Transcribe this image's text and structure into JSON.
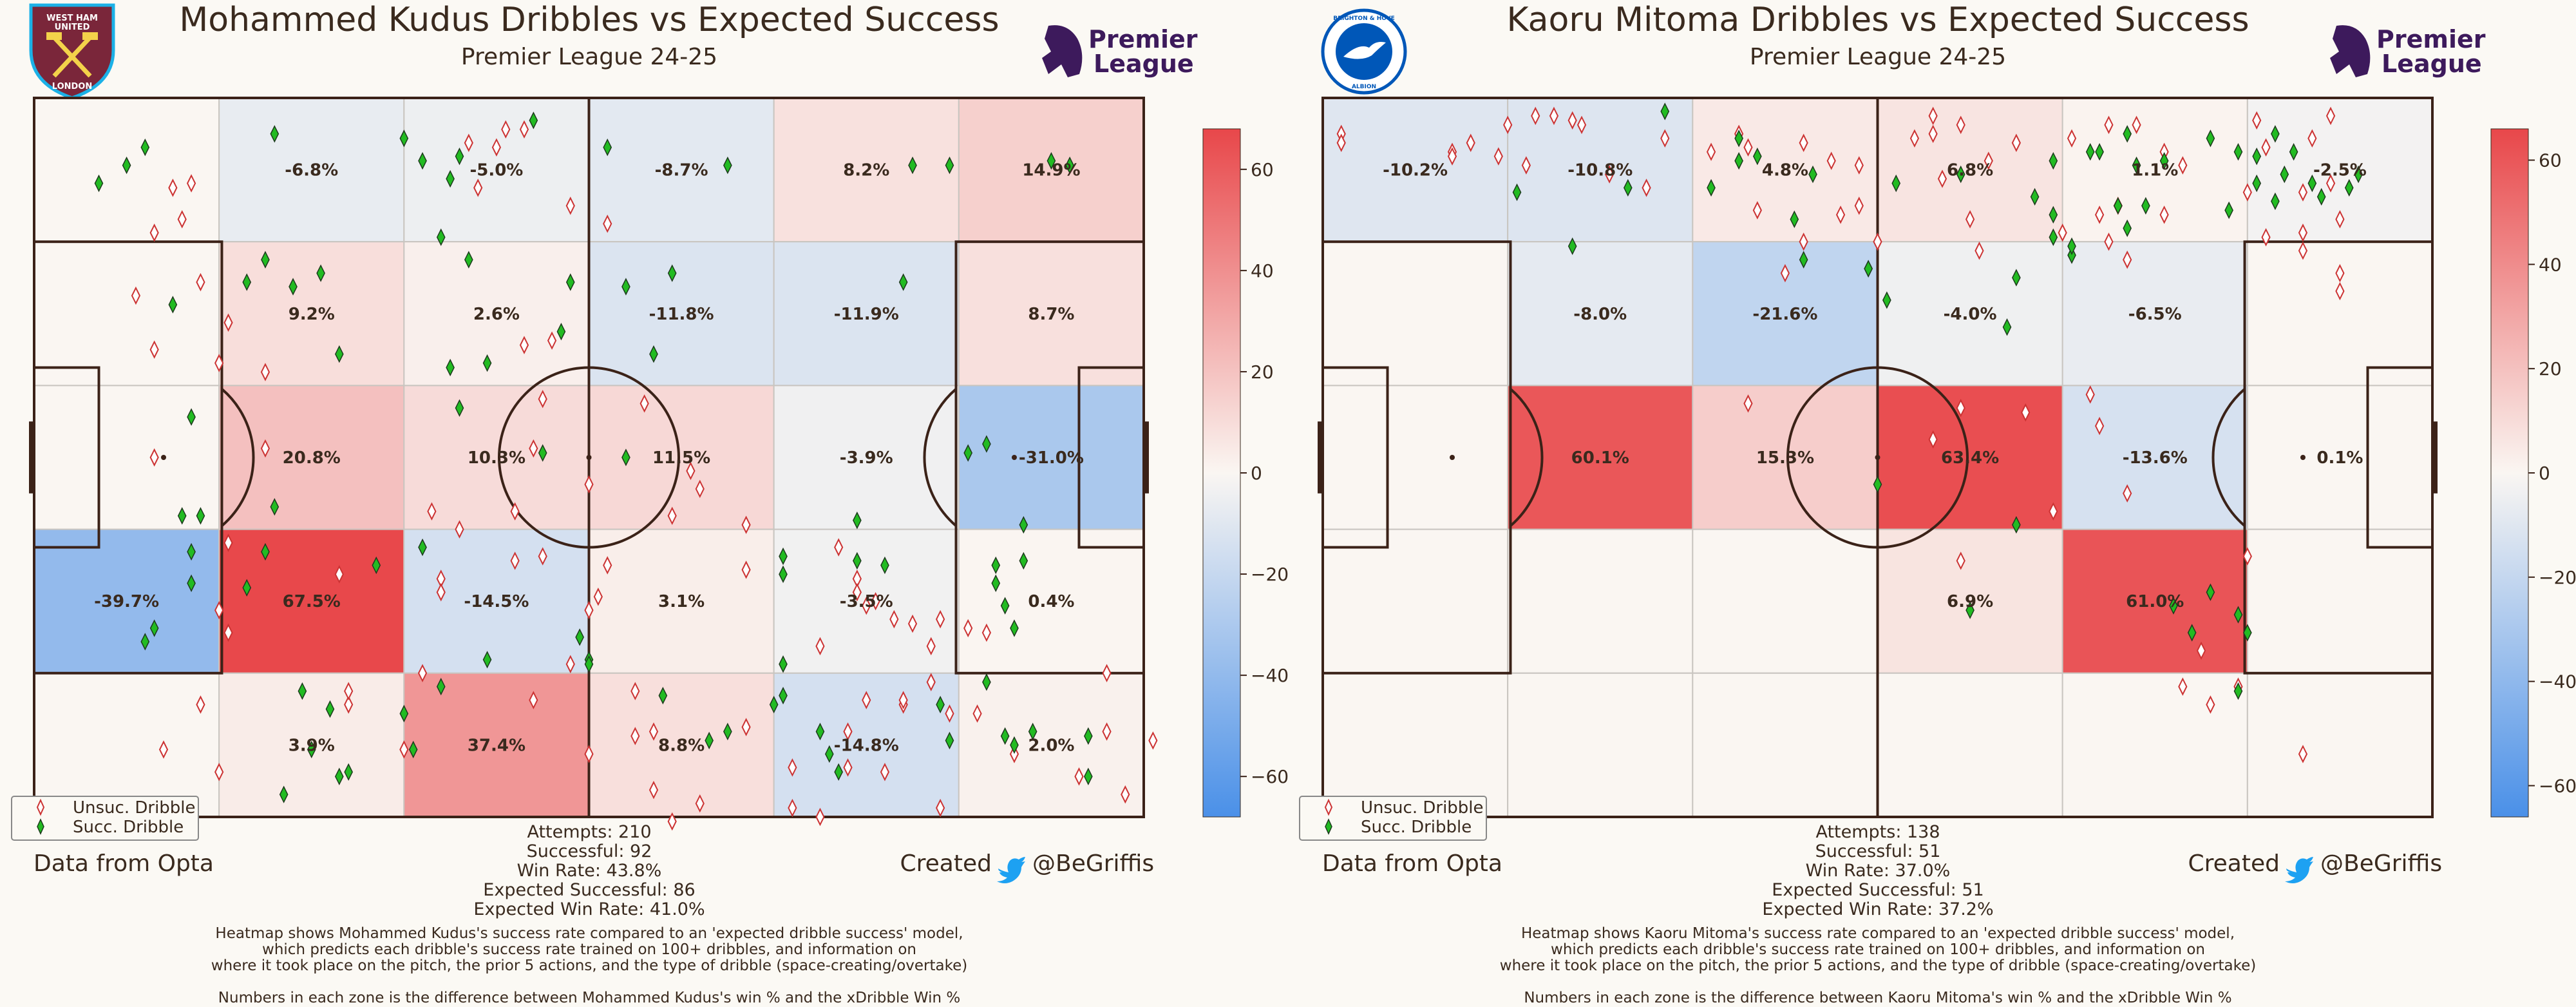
{
  "colors": {
    "background": "#fbf9f4",
    "pitch_line": "#3b2218",
    "grid_line": "#c9c5c0",
    "unsuccessful": "#cc3333",
    "successful": "#22bb22",
    "scale_positive": "#e8474a",
    "scale_neutral": "#faf6f2",
    "scale_negative": "#4a90e8",
    "premier_league": "#3d1a5c",
    "twitter": "#1da1f2"
  },
  "credits": {
    "data_source": "Data from Opta",
    "created_label": "Created",
    "handle": "@BeGriffis"
  },
  "legend": {
    "unsuccessful": "Unsuc. Dribble",
    "successful": "Succ. Dribble"
  },
  "premier_league_logo": {
    "line1": "Premier",
    "line2": "League"
  },
  "chart_data": [
    {
      "type": "heatmap",
      "title": "Mohammed Kudus Dribbles vs Expected Success",
      "subtitle": "Premier League 24-25",
      "club_logo": {
        "name": "west-ham-crest",
        "line1": "WEST HAM",
        "line2": "UNITED",
        "line3": "LONDON"
      },
      "grid": {
        "columns": 6,
        "rows": 5
      },
      "zone_values": [
        [
          null,
          -6.8,
          -5.0,
          -8.7,
          8.2,
          14.9
        ],
        [
          null,
          9.2,
          2.6,
          -11.8,
          -11.9,
          8.7
        ],
        [
          null,
          20.8,
          10.3,
          11.5,
          -3.9,
          -31.0
        ],
        [
          -39.7,
          67.5,
          -14.5,
          3.1,
          -3.5,
          0.4
        ],
        [
          null,
          3.9,
          37.4,
          8.8,
          -14.8,
          2.0
        ]
      ],
      "colorbar": {
        "min": -68,
        "max": 68,
        "ticks": [
          60,
          40,
          20,
          0,
          -20,
          -40,
          -60
        ]
      },
      "stats": [
        "Attempts: 210",
        "Successful: 92",
        "Win Rate: 43.8%",
        "Expected Successful: 86",
        "Expected Win Rate: 41.0%"
      ],
      "notes": [
        "Heatmap shows Mohammed Kudus's success rate compared to an 'expected dribble success' model,",
        "which predicts each dribble's success rate trained on 100+ dribbles, and information on",
        "where it took place on the pitch, the prior 5 actions, and the type of dribble (space-creating/overtake)",
        "",
        "Numbers in each zone is the difference between Mohammed Kudus's win % and the xDribble Win %"
      ],
      "dribbles_unsuccessful": [
        [
          15,
          20
        ],
        [
          13,
          30
        ],
        [
          16,
          27
        ],
        [
          17,
          19
        ],
        [
          11,
          44
        ],
        [
          18,
          41
        ],
        [
          13,
          56
        ],
        [
          20,
          59
        ],
        [
          21,
          50
        ],
        [
          13,
          80
        ],
        [
          25,
          61
        ],
        [
          25,
          78
        ],
        [
          21,
          99
        ],
        [
          21,
          119
        ],
        [
          33,
          106
        ],
        [
          20,
          114
        ],
        [
          43,
          92
        ],
        [
          46,
          96
        ],
        [
          44,
          107
        ],
        [
          44,
          110
        ],
        [
          52,
          92
        ],
        [
          52,
          103
        ],
        [
          69,
          93
        ],
        [
          77,
          95
        ],
        [
          62,
          104
        ],
        [
          61,
          111
        ],
        [
          65,
          132
        ],
        [
          42,
          128
        ],
        [
          20,
          150
        ],
        [
          14,
          145
        ],
        [
          18,
          135
        ],
        [
          40,
          145
        ],
        [
          65,
          142
        ],
        [
          60,
          146
        ],
        [
          67,
          141
        ],
        [
          72,
          157
        ],
        [
          67,
          154
        ],
        [
          69,
          161
        ],
        [
          82,
          158
        ],
        [
          85,
          160
        ],
        [
          88,
          149
        ],
        [
          77,
          140
        ],
        [
          82,
          149
        ],
        [
          98,
          158
        ],
        [
          94,
          135
        ],
        [
          94,
          134
        ],
        [
          97,
          122
        ],
        [
          90,
          113
        ],
        [
          95,
          117
        ],
        [
          89,
          107
        ],
        [
          93,
          116
        ],
        [
          98,
          116
        ],
        [
          91,
          112
        ],
        [
          89,
          110
        ],
        [
          85,
          122
        ],
        [
          90,
          134
        ],
        [
          58,
          24
        ],
        [
          62,
          28
        ],
        [
          53,
          55
        ],
        [
          56,
          54
        ],
        [
          54,
          78
        ],
        [
          60,
          86
        ],
        [
          66,
          68
        ],
        [
          55,
          67
        ],
        [
          55,
          102
        ],
        [
          54,
          134
        ],
        [
          48,
          20
        ],
        [
          47,
          10
        ],
        [
          53,
          7
        ],
        [
          51,
          7
        ],
        [
          50,
          11
        ],
        [
          87,
          100
        ],
        [
          92,
          150
        ],
        [
          88,
          141
        ],
        [
          77,
          105
        ],
        [
          71,
          83
        ],
        [
          72,
          87
        ],
        [
          60,
          114
        ],
        [
          58,
          126
        ],
        [
          34,
          135
        ],
        [
          34,
          132
        ],
        [
          99,
          137
        ],
        [
          97,
          130
        ],
        [
          103,
          119
        ],
        [
          101,
          118
        ],
        [
          116,
          141
        ],
        [
          113,
          151
        ],
        [
          121,
          143
        ],
        [
          118,
          155
        ],
        [
          116,
          128
        ],
        [
          102,
          137
        ],
        [
          106,
          146
        ]
      ],
      "dribbles_successful": [
        [
          7,
          19
        ],
        [
          10,
          15
        ],
        [
          15,
          46
        ],
        [
          12,
          11
        ],
        [
          23,
          41
        ],
        [
          25,
          36
        ],
        [
          26,
          8
        ],
        [
          33,
          57
        ],
        [
          28,
          42
        ],
        [
          31,
          39
        ],
        [
          45,
          18
        ],
        [
          47,
          36
        ],
        [
          42,
          100
        ],
        [
          44,
          131
        ],
        [
          49,
          125
        ],
        [
          34,
          150
        ],
        [
          30,
          145
        ],
        [
          40,
          137
        ],
        [
          27,
          155
        ],
        [
          29,
          132
        ],
        [
          32,
          136
        ],
        [
          33,
          151
        ],
        [
          41,
          145
        ],
        [
          59,
          120
        ],
        [
          60,
          125
        ],
        [
          60,
          126
        ],
        [
          68,
          133
        ],
        [
          73,
          143
        ],
        [
          75,
          141
        ],
        [
          80,
          135
        ],
        [
          81,
          133
        ],
        [
          81,
          126
        ],
        [
          85,
          141
        ],
        [
          81,
          106
        ],
        [
          81,
          102
        ],
        [
          89,
          94
        ],
        [
          92,
          104
        ],
        [
          89,
          103
        ],
        [
          98,
          135
        ],
        [
          103,
          130
        ],
        [
          106,
          144
        ],
        [
          105,
          142
        ],
        [
          108,
          141
        ],
        [
          114,
          151
        ],
        [
          114,
          142
        ],
        [
          104,
          104
        ],
        [
          87,
          150
        ],
        [
          86,
          146
        ],
        [
          99,
          143
        ],
        [
          62,
          11
        ],
        [
          64,
          80
        ],
        [
          64,
          42
        ],
        [
          58,
          41
        ],
        [
          57,
          52
        ],
        [
          67,
          57
        ],
        [
          55,
          79
        ],
        [
          40,
          9
        ],
        [
          42,
          14
        ],
        [
          46,
          69
        ],
        [
          45,
          60
        ],
        [
          44,
          31
        ],
        [
          49,
          59
        ],
        [
          54,
          5
        ],
        [
          46,
          13
        ],
        [
          37,
          104
        ],
        [
          25,
          101
        ],
        [
          26,
          91
        ],
        [
          17,
          71
        ],
        [
          16,
          93
        ],
        [
          17,
          108
        ],
        [
          23,
          109
        ],
        [
          18,
          93
        ],
        [
          17,
          101
        ],
        [
          12,
          121
        ],
        [
          13,
          118
        ],
        [
          94,
          41
        ],
        [
          103,
          77
        ],
        [
          101,
          79
        ],
        [
          107,
          95
        ],
        [
          104,
          108
        ],
        [
          105,
          113
        ],
        [
          106,
          118
        ],
        [
          107,
          103
        ],
        [
          110,
          14
        ],
        [
          112,
          15
        ],
        [
          99,
          15
        ],
        [
          95,
          15
        ],
        [
          75,
          15
        ],
        [
          69,
          39
        ]
      ]
    },
    {
      "type": "heatmap",
      "title": "Kaoru Mitoma Dribbles vs Expected Success",
      "subtitle": "Premier League 24-25",
      "club_logo": {
        "name": "brighton-crest",
        "line1": "BRIGHTON & HOVE",
        "line2": "ALBION"
      },
      "grid": {
        "columns": 6,
        "rows": 5
      },
      "zone_values": [
        [
          -10.2,
          -10.8,
          4.8,
          6.8,
          1.1,
          -2.5
        ],
        [
          null,
          -8.0,
          -21.6,
          -4.0,
          -6.5,
          null
        ],
        [
          null,
          60.1,
          15.3,
          63.4,
          -13.6,
          0.1
        ],
        [
          null,
          null,
          null,
          6.9,
          61.0,
          null
        ],
        [
          null,
          null,
          null,
          null,
          null,
          null
        ]
      ],
      "colorbar": {
        "min": -66,
        "max": 66,
        "ticks": [
          60,
          40,
          20,
          0,
          -20,
          -40,
          -60
        ]
      },
      "stats": [
        "Attempts: 138",
        "Successful: 51",
        "Win Rate: 37.0%",
        "Expected Successful: 51",
        "Expected Win Rate: 37.2%"
      ],
      "notes": [
        "Heatmap shows Kaoru Mitoma's success rate compared to an 'expected dribble success' model,",
        "which predicts each dribble's success rate trained on 100+ dribbles, and information on",
        "where it took place on the pitch, the prior 5 actions, and the type of dribble (space-creating/overtake)",
        "",
        "Numbers in each zone is the difference between Kaoru Mitoma's win % and the xDribble Win %"
      ],
      "dribbles_unsuccessful": [
        [
          2,
          8
        ],
        [
          2,
          10
        ],
        [
          14,
          12
        ],
        [
          14,
          13
        ],
        [
          16,
          10
        ],
        [
          20,
          6
        ],
        [
          23,
          4
        ],
        [
          25,
          4
        ],
        [
          27,
          5
        ],
        [
          28,
          6
        ],
        [
          22,
          15
        ],
        [
          19,
          13
        ],
        [
          31,
          17
        ],
        [
          35,
          20
        ],
        [
          37,
          9
        ],
        [
          45,
          8
        ],
        [
          46,
          11
        ],
        [
          42,
          12
        ],
        [
          52,
          10
        ],
        [
          55,
          14
        ],
        [
          64,
          9
        ],
        [
          66,
          8
        ],
        [
          66,
          4
        ],
        [
          69,
          6
        ],
        [
          67,
          18
        ],
        [
          58,
          15
        ],
        [
          72,
          14
        ],
        [
          75,
          10
        ],
        [
          81,
          9
        ],
        [
          85,
          6
        ],
        [
          88,
          6
        ],
        [
          91,
          12
        ],
        [
          93,
          15
        ],
        [
          101,
          5
        ],
        [
          102,
          11
        ],
        [
          107,
          9
        ],
        [
          109,
          4
        ],
        [
          109,
          19
        ],
        [
          106,
          21
        ],
        [
          100,
          21
        ],
        [
          91,
          26
        ],
        [
          86,
          24
        ],
        [
          84,
          26
        ],
        [
          80,
          30
        ],
        [
          85,
          32
        ],
        [
          87,
          36
        ],
        [
          70,
          27
        ],
        [
          71,
          34
        ],
        [
          60,
          32
        ],
        [
          56,
          26
        ],
        [
          58,
          24
        ],
        [
          52,
          32
        ],
        [
          50,
          39
        ],
        [
          47,
          25
        ],
        [
          106,
          30
        ],
        [
          110,
          27
        ],
        [
          106,
          34
        ],
        [
          110,
          39
        ],
        [
          110,
          43
        ],
        [
          102,
          31
        ],
        [
          46,
          68
        ],
        [
          76,
          70
        ],
        [
          87,
          88
        ],
        [
          84,
          73
        ],
        [
          83,
          66
        ],
        [
          69,
          69
        ],
        [
          79,
          92
        ],
        [
          66,
          76
        ],
        [
          69,
          103
        ],
        [
          100,
          102
        ],
        [
          95,
          123
        ],
        [
          93,
          131
        ],
        [
          96,
          135
        ],
        [
          99,
          131
        ],
        [
          106,
          146
        ]
      ],
      "dribbles_successful": [
        [
          33,
          20
        ],
        [
          27,
          33
        ],
        [
          21,
          21
        ],
        [
          42,
          20
        ],
        [
          45,
          14
        ],
        [
          51,
          27
        ],
        [
          62,
          19
        ],
        [
          69,
          17
        ],
        [
          77,
          22
        ],
        [
          79,
          14
        ],
        [
          83,
          12
        ],
        [
          91,
          14
        ],
        [
          96,
          9
        ],
        [
          99,
          12
        ],
        [
          101,
          19
        ],
        [
          104,
          17
        ],
        [
          112,
          17
        ],
        [
          111,
          20
        ],
        [
          107,
          19
        ],
        [
          108,
          22
        ],
        [
          103,
          23
        ],
        [
          98,
          25
        ],
        [
          89,
          24
        ],
        [
          87,
          29
        ],
        [
          86,
          24
        ],
        [
          79,
          26
        ],
        [
          79,
          31
        ],
        [
          81,
          35
        ],
        [
          75,
          40
        ],
        [
          81,
          33
        ],
        [
          74,
          51
        ],
        [
          59,
          38
        ],
        [
          52,
          36
        ],
        [
          61,
          45
        ],
        [
          84,
          12
        ],
        [
          53,
          17
        ],
        [
          47,
          13
        ],
        [
          37,
          3
        ],
        [
          45,
          9
        ],
        [
          87,
          8
        ],
        [
          88,
          15
        ],
        [
          103,
          8
        ],
        [
          105,
          12
        ],
        [
          101,
          13
        ],
        [
          59,
          38
        ],
        [
          75,
          95
        ],
        [
          92,
          113
        ],
        [
          96,
          110
        ],
        [
          100,
          119
        ],
        [
          99,
          132
        ],
        [
          94,
          119
        ],
        [
          99,
          115
        ],
        [
          60,
          86
        ],
        [
          70,
          114
        ]
      ]
    }
  ]
}
